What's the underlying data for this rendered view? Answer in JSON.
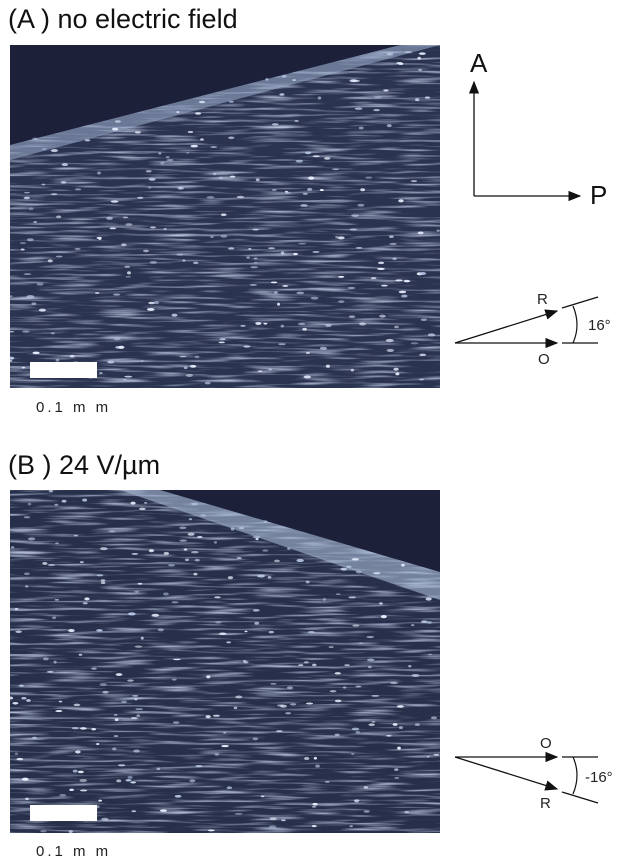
{
  "axes": {
    "analyzer": "A",
    "polarizer": "P"
  },
  "panels": [
    {
      "label": "(A ) no electric field",
      "scale": "0.1 m m",
      "R": "R",
      "O": "O",
      "angle": "16°"
    },
    {
      "label": "(B ) 24 V/µm",
      "scale": "0.1 m m",
      "R": "R",
      "O": "O",
      "angle": "-16°"
    }
  ]
}
